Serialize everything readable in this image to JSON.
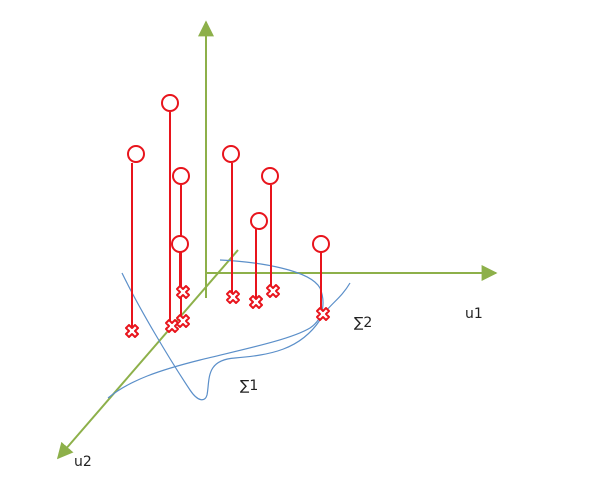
{
  "labels": {
    "axis_u1": "u1",
    "axis_u2": "u2",
    "sigma1": "∑1",
    "sigma2": "∑2"
  },
  "colors": {
    "axis": "#8db04a",
    "curve": "#5b8fc9",
    "marker": "#e8141c"
  },
  "markers": {
    "high_count": 8,
    "base_count": 8,
    "high_marker": "open-circle",
    "base_marker": "cross-icon"
  }
}
